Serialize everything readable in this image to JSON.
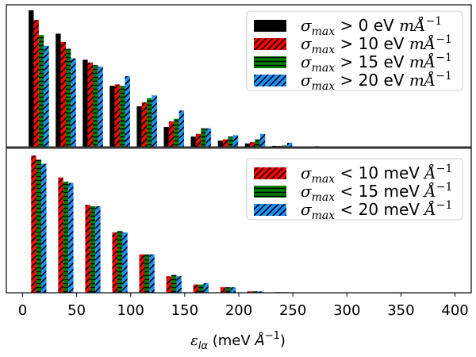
{
  "chart_data": [
    {
      "type": "bar",
      "panel": "top",
      "bin_centers": [
        15,
        40,
        65,
        90,
        115,
        140,
        165,
        190,
        215,
        240,
        265,
        290
      ],
      "series": [
        {
          "name": "σmax > 0 eV mÅ⁻¹",
          "legend_parts": [
            "σ",
            "max",
            " > 0 eV ",
            "mÅ",
            "−1"
          ],
          "color": "#000000",
          "hatch": "none",
          "values": [
            1.0,
            0.83,
            0.64,
            0.45,
            0.3,
            0.15,
            0.08,
            0.05,
            0.03,
            0.012,
            0.006,
            0.003
          ]
        },
        {
          "name": "σmax > 10 eV mÅ⁻¹",
          "legend_parts": [
            "σ",
            "max",
            " > 10 eV ",
            "mÅ",
            "−1"
          ],
          "color": "#ff0000",
          "hatch": "diag",
          "values": [
            0.93,
            0.77,
            0.62,
            0.46,
            0.33,
            0.19,
            0.1,
            0.06,
            0.04,
            0.012,
            0.005,
            0.003
          ]
        },
        {
          "name": "σmax > 15 eV mÅ⁻¹",
          "legend_parts": [
            "σ",
            "max",
            " > 15 eV ",
            "mÅ",
            "−1"
          ],
          "color": "#008000",
          "hatch": "horiz",
          "values": [
            0.82,
            0.72,
            0.6,
            0.45,
            0.36,
            0.21,
            0.14,
            0.08,
            0.06,
            0.015,
            0.006,
            0.004
          ]
        },
        {
          "name": "σmax > 20 eV mÅ⁻¹",
          "legend_parts": [
            "σ",
            "max",
            " > 20 eV ",
            "mÅ",
            "−1"
          ],
          "color": "#1e90ff",
          "hatch": "diag",
          "values": [
            0.74,
            0.65,
            0.59,
            0.52,
            0.38,
            0.27,
            0.14,
            0.09,
            0.1,
            0.035,
            0.01,
            0.005
          ]
        }
      ],
      "ylim": [
        0,
        1.0
      ],
      "legend": "top-right"
    },
    {
      "type": "bar",
      "panel": "bottom",
      "bin_centers": [
        15,
        40,
        65,
        90,
        115,
        140,
        165,
        190,
        215,
        240,
        265,
        290
      ],
      "series": [
        {
          "name": "σmax < 10 meV Å⁻¹",
          "legend_parts": [
            "σ",
            "max",
            " < 10 meV ",
            "Å",
            "−1"
          ],
          "color": "#ff0000",
          "hatch": "diag",
          "values": [
            1.0,
            0.84,
            0.64,
            0.44,
            0.28,
            0.12,
            0.06,
            0.04,
            0.01,
            0.004,
            0.002,
            0.001
          ]
        },
        {
          "name": "σmax < 15 meV Å⁻¹",
          "legend_parts": [
            "σ",
            "max",
            " < 15 meV ",
            "Å",
            "−1"
          ],
          "color": "#008000",
          "hatch": "horiz",
          "values": [
            0.97,
            0.81,
            0.63,
            0.45,
            0.28,
            0.13,
            0.06,
            0.04,
            0.01,
            0.004,
            0.002,
            0.001
          ]
        },
        {
          "name": "σmax < 20 meV Å⁻¹",
          "legend_parts": [
            "σ",
            "max",
            " < 20 meV ",
            "Å",
            "−1"
          ],
          "color": "#1e90ff",
          "hatch": "diag",
          "values": [
            0.94,
            0.8,
            0.63,
            0.44,
            0.28,
            0.12,
            0.07,
            0.04,
            0.01,
            0.004,
            0.002,
            0.001
          ]
        }
      ],
      "ylim": [
        0,
        1.0
      ],
      "legend": "top-right"
    }
  ],
  "x_axis": {
    "xlim": [
      -15,
      415
    ],
    "ticks": [
      0,
      50,
      100,
      150,
      200,
      250,
      300,
      350,
      400
    ],
    "label_parts": [
      "ε",
      "lα",
      " (meV ",
      "Å",
      "−1",
      ")"
    ]
  }
}
